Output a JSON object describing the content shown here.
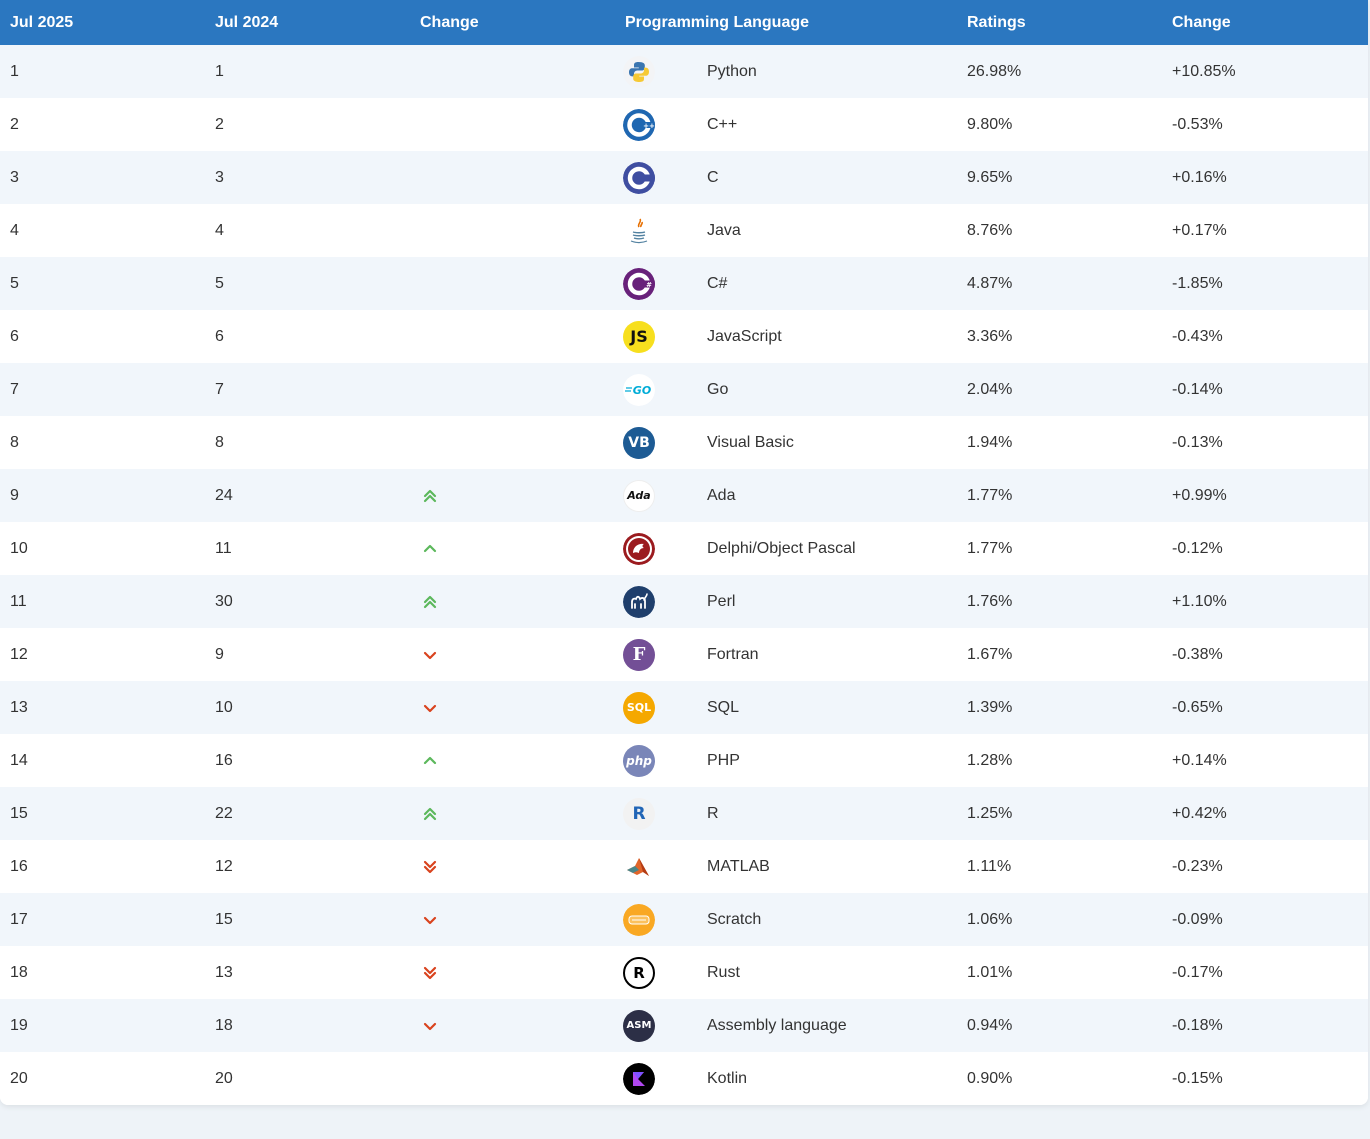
{
  "headers": [
    "Jul 2025",
    "Jul 2024",
    "Change",
    "Programming Language",
    "Ratings",
    "Change"
  ],
  "rows": [
    {
      "rank_2025": "1",
      "rank_2024": "1",
      "trend": "none",
      "language": "Python",
      "rating": "26.98%",
      "change": "+10.85%",
      "icon": "python-logo-icon"
    },
    {
      "rank_2025": "2",
      "rank_2024": "2",
      "trend": "none",
      "language": "C++",
      "rating": "9.80%",
      "change": "-0.53%",
      "icon": "cpp-logo-icon"
    },
    {
      "rank_2025": "3",
      "rank_2024": "3",
      "trend": "none",
      "language": "C",
      "rating": "9.65%",
      "change": "+0.16%",
      "icon": "c-logo-icon"
    },
    {
      "rank_2025": "4",
      "rank_2024": "4",
      "trend": "none",
      "language": "Java",
      "rating": "8.76%",
      "change": "+0.17%",
      "icon": "java-logo-icon"
    },
    {
      "rank_2025": "5",
      "rank_2024": "5",
      "trend": "none",
      "language": "C#",
      "rating": "4.87%",
      "change": "-1.85%",
      "icon": "csharp-logo-icon"
    },
    {
      "rank_2025": "6",
      "rank_2024": "6",
      "trend": "none",
      "language": "JavaScript",
      "rating": "3.36%",
      "change": "-0.43%",
      "icon": "javascript-logo-icon"
    },
    {
      "rank_2025": "7",
      "rank_2024": "7",
      "trend": "none",
      "language": "Go",
      "rating": "2.04%",
      "change": "-0.14%",
      "icon": "go-logo-icon"
    },
    {
      "rank_2025": "8",
      "rank_2024": "8",
      "trend": "none",
      "language": "Visual Basic",
      "rating": "1.94%",
      "change": "-0.13%",
      "icon": "visual-basic-logo-icon"
    },
    {
      "rank_2025": "9",
      "rank_2024": "24",
      "trend": "up2",
      "language": "Ada",
      "rating": "1.77%",
      "change": "+0.99%",
      "icon": "ada-logo-icon"
    },
    {
      "rank_2025": "10",
      "rank_2024": "11",
      "trend": "up",
      "language": "Delphi/Object Pascal",
      "rating": "1.77%",
      "change": "-0.12%",
      "icon": "delphi-logo-icon"
    },
    {
      "rank_2025": "11",
      "rank_2024": "30",
      "trend": "up2",
      "language": "Perl",
      "rating": "1.76%",
      "change": "+1.10%",
      "icon": "perl-logo-icon"
    },
    {
      "rank_2025": "12",
      "rank_2024": "9",
      "trend": "down",
      "language": "Fortran",
      "rating": "1.67%",
      "change": "-0.38%",
      "icon": "fortran-logo-icon"
    },
    {
      "rank_2025": "13",
      "rank_2024": "10",
      "trend": "down",
      "language": "SQL",
      "rating": "1.39%",
      "change": "-0.65%",
      "icon": "sql-logo-icon"
    },
    {
      "rank_2025": "14",
      "rank_2024": "16",
      "trend": "up",
      "language": "PHP",
      "rating": "1.28%",
      "change": "+0.14%",
      "icon": "php-logo-icon"
    },
    {
      "rank_2025": "15",
      "rank_2024": "22",
      "trend": "up2",
      "language": "R",
      "rating": "1.25%",
      "change": "+0.42%",
      "icon": "r-logo-icon"
    },
    {
      "rank_2025": "16",
      "rank_2024": "12",
      "trend": "down2",
      "language": "MATLAB",
      "rating": "1.11%",
      "change": "-0.23%",
      "icon": "matlab-logo-icon"
    },
    {
      "rank_2025": "17",
      "rank_2024": "15",
      "trend": "down",
      "language": "Scratch",
      "rating": "1.06%",
      "change": "-0.09%",
      "icon": "scratch-logo-icon"
    },
    {
      "rank_2025": "18",
      "rank_2024": "13",
      "trend": "down2",
      "language": "Rust",
      "rating": "1.01%",
      "change": "-0.17%",
      "icon": "rust-logo-icon"
    },
    {
      "rank_2025": "19",
      "rank_2024": "18",
      "trend": "down",
      "language": "Assembly language",
      "rating": "0.94%",
      "change": "-0.18%",
      "icon": "assembly-logo-icon"
    },
    {
      "rank_2025": "20",
      "rank_2024": "20",
      "trend": "none",
      "language": "Kotlin",
      "rating": "0.90%",
      "change": "-0.15%",
      "icon": "kotlin-logo-icon"
    }
  ],
  "logos": {
    "cpp": "C",
    "c": "C",
    "csharp": "C",
    "javascript": "JS",
    "go": "GO",
    "visual_basic": "VB",
    "ada": "Ada",
    "fortran": "F",
    "sql": "SQL",
    "php": "php",
    "r": "R",
    "rust": "R",
    "assembly": "ASM"
  },
  "colors": {
    "header_bg": "#2b77c0",
    "row_alt_bg": "#f1f6fb",
    "trend_up": "#5cb85c",
    "trend_down": "#d9431e"
  }
}
